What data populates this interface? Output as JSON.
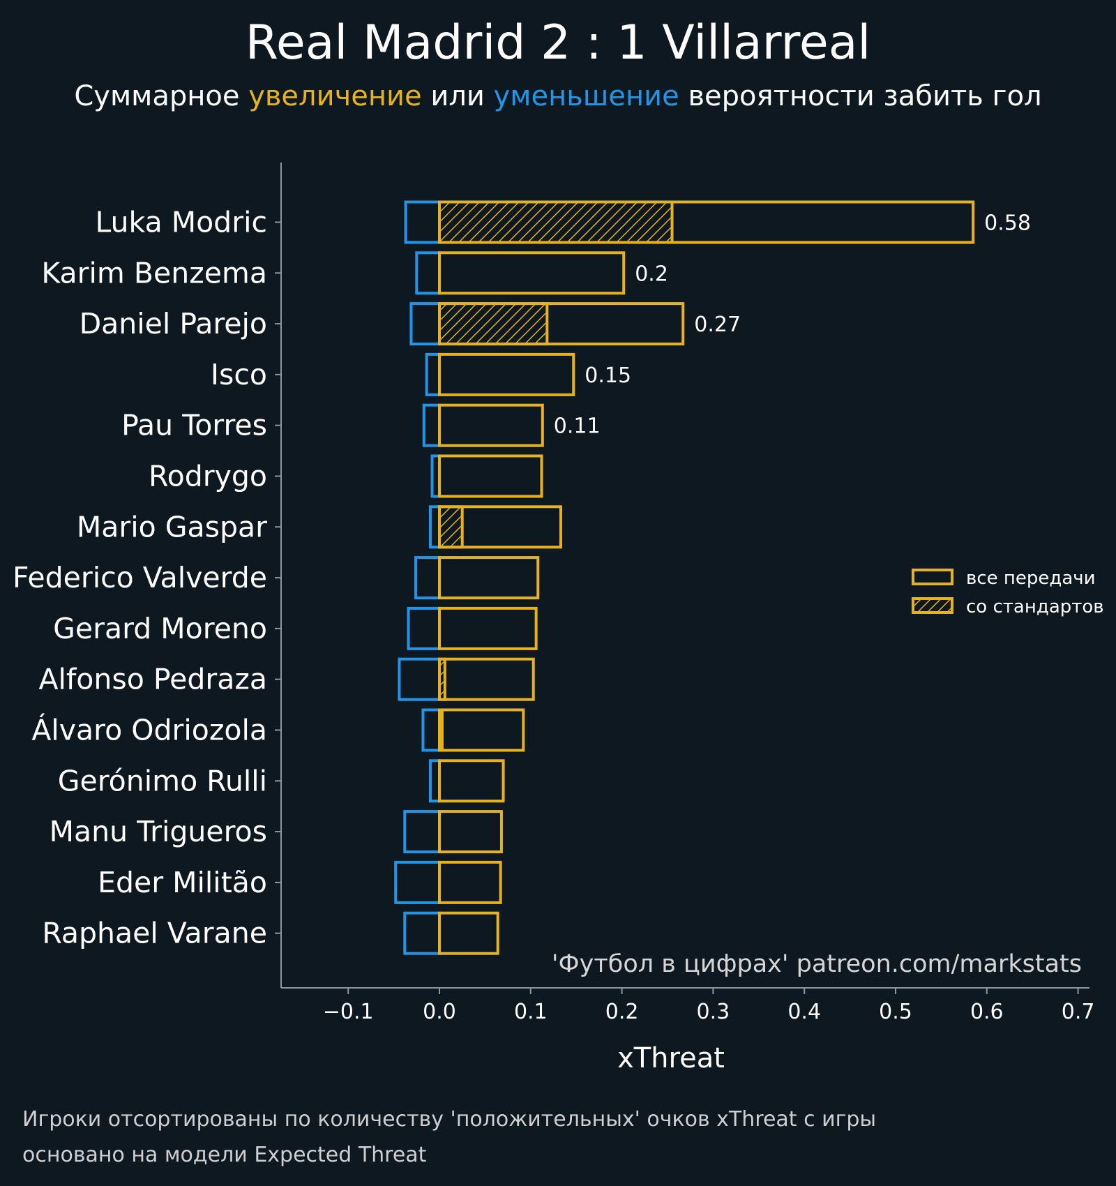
{
  "colors": {
    "background": "#0e1820",
    "positive": "#e6b31e",
    "negative": "#2196e8",
    "axis": "#8a98a4",
    "text": "#ffffff"
  },
  "header": {
    "title": "Real Madrid 2 : 1 Villarreal",
    "subtitle_part1": "Суммарное ",
    "subtitle_part2": "увеличение",
    "subtitle_part3": " или ",
    "subtitle_part4": "уменьшение",
    "subtitle_part5": " вероятности забить гол"
  },
  "watermark": "'Футбол в цифрах' patreon.com/markstats",
  "footnote": {
    "line1": "Игроки отсортированы по количеству 'положительных' очков xThreat с игры",
    "line2": "основано на модели Expected Threat"
  },
  "chart_data": {
    "type": "bar",
    "orientation": "horizontal",
    "xlabel": "xThreat",
    "xlim": [
      -0.175,
      0.71
    ],
    "xticks": [
      -0.1,
      0.0,
      0.1,
      0.2,
      0.3,
      0.4,
      0.5,
      0.6,
      0.7
    ],
    "xtick_labels": [
      "−0.1",
      "0.0",
      "0.1",
      "0.2",
      "0.3",
      "0.4",
      "0.5",
      "0.6",
      "0.7"
    ],
    "grid": false,
    "legend_position": "right",
    "legend": [
      {
        "label": "все передачи",
        "style": "outline"
      },
      {
        "label": "со стандартов",
        "style": "hatched"
      }
    ],
    "categories": [
      "Luka Modric",
      "Karim Benzema",
      "Daniel Parejo",
      "Isco",
      "Pau Torres",
      "Rodrygo",
      "Mario Gaspar",
      "Federico Valverde",
      "Gerard Moreno",
      "Alfonso Pedraza",
      "Álvaro Odriozola",
      "Gerónimo Rulli",
      "Manu Trigueros",
      "Eder Militão",
      "Raphael Varane"
    ],
    "positive_all": [
      0.585,
      0.202,
      0.267,
      0.147,
      0.113,
      0.112,
      0.133,
      0.108,
      0.106,
      0.103,
      0.092,
      0.07,
      0.068,
      0.067,
      0.064
    ],
    "positive_set_pieces": [
      0.255,
      0,
      0.118,
      0,
      0,
      0,
      0.025,
      0,
      0,
      0.006,
      0.003,
      0,
      0,
      0,
      0
    ],
    "negative": [
      -0.037,
      -0.025,
      -0.031,
      -0.014,
      -0.017,
      -0.008,
      -0.01,
      -0.026,
      -0.034,
      -0.044,
      -0.018,
      -0.01,
      -0.038,
      -0.048,
      -0.038
    ],
    "data_labels": [
      "0.58",
      "0.2",
      "0.27",
      "0.15",
      "0.11",
      "",
      "",
      "",
      "",
      "",
      "",
      "",
      "",
      "",
      ""
    ]
  }
}
